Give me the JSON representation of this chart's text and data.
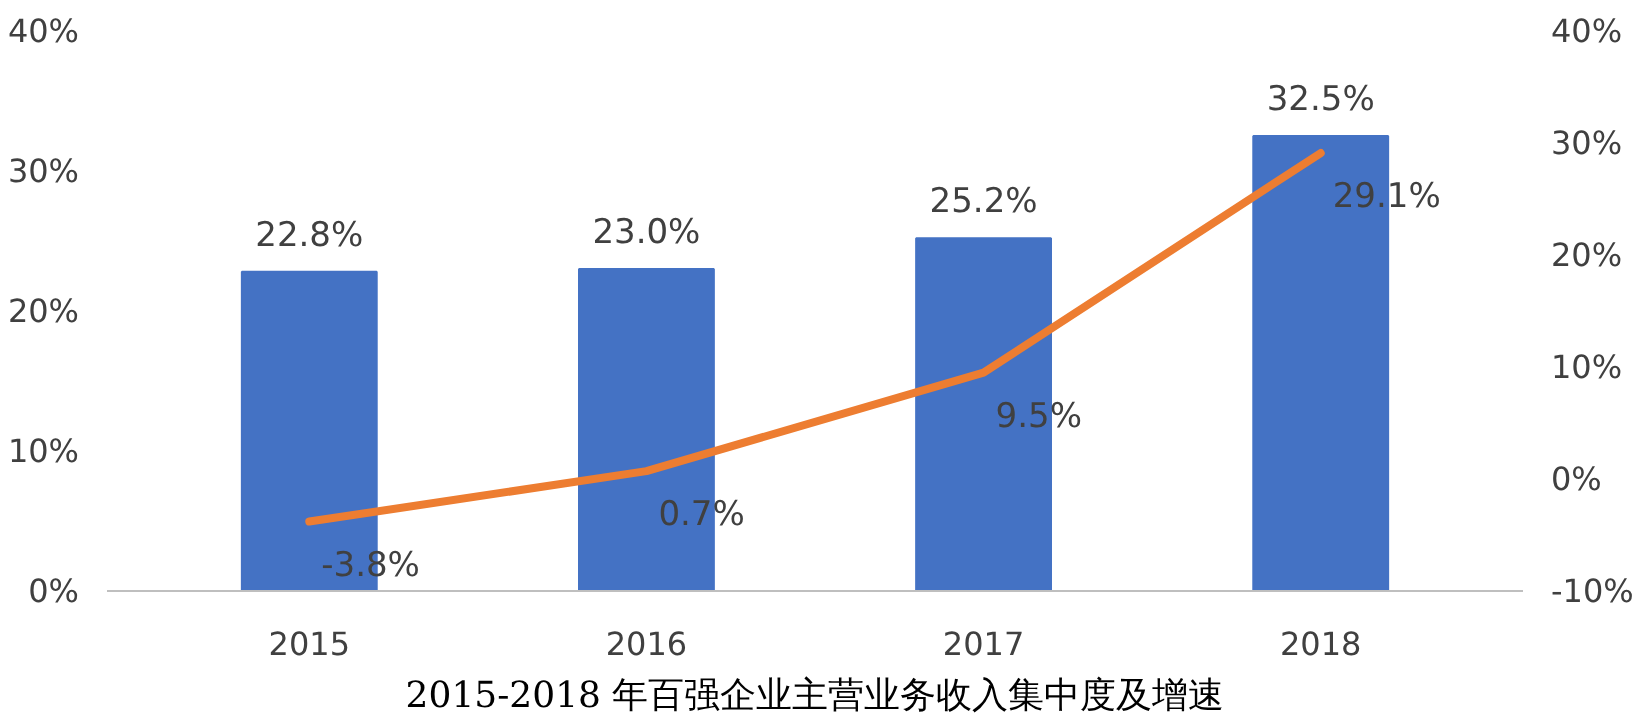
{
  "chart_data": {
    "type": "bar",
    "title": "2015-2018 年百强企业主营业务收入集中度及增速",
    "categories": [
      "2015",
      "2016",
      "2017",
      "2018"
    ],
    "series": [
      {
        "color": "#4472c4",
        "values": [
          22.8,
          23.0,
          25.2,
          32.5
        ],
        "value_labels": [
          "22.8%",
          "23.0%",
          "25.2%",
          "32.5%"
        ]
      },
      {
        "type": "line",
        "axis": "y2",
        "color": "#ed7d31",
        "values": [
          -3.8,
          0.7,
          9.5,
          29.1
        ],
        "value_labels": [
          "-3.8%",
          "0.7%",
          "9.5%",
          "29.1%"
        ]
      }
    ],
    "ylim": [
      0,
      40
    ],
    "yticks": [
      {
        "value": 0,
        "label": "0%"
      },
      {
        "value": 10,
        "label": "10%"
      },
      {
        "value": 20,
        "label": "20%"
      },
      {
        "value": 30,
        "label": "30%"
      },
      {
        "value": 40,
        "label": "40%"
      }
    ],
    "y2lim": [
      -10,
      40
    ],
    "y2ticks": [
      {
        "value": -10,
        "label": "-10%"
      },
      {
        "value": 0,
        "label": "0%"
      },
      {
        "value": 10,
        "label": "10%"
      },
      {
        "value": 20,
        "label": "20%"
      },
      {
        "value": 30,
        "label": "30%"
      },
      {
        "value": 40,
        "label": "40%"
      }
    ],
    "grid": false,
    "marker": "none",
    "line_style": "solid"
  }
}
